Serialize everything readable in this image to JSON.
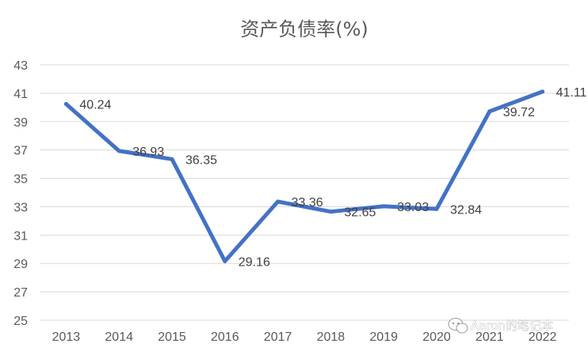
{
  "watermark": "Aaron的笔记本",
  "chart_data": {
    "type": "line",
    "title": "资产负债率(%)",
    "xlabel": "",
    "ylabel": "",
    "categories": [
      "2013",
      "2014",
      "2015",
      "2016",
      "2017",
      "2018",
      "2019",
      "2020",
      "2021",
      "2022"
    ],
    "values": [
      40.24,
      36.93,
      36.35,
      29.16,
      33.36,
      32.65,
      33.03,
      32.84,
      39.72,
      41.11
    ],
    "data_labels": [
      "40.24",
      "36.93",
      "36.35",
      "29.16",
      "33.36",
      "32.65",
      "33.03",
      "32.84",
      "39.72",
      "41.11"
    ],
    "ylim": [
      25,
      43
    ],
    "yticks": [
      25,
      27,
      29,
      31,
      33,
      35,
      37,
      39,
      41,
      43
    ],
    "grid": true,
    "legend": "none",
    "colors": {
      "line": "#4472c4",
      "grid": "#d9d9d9",
      "text": "#595959"
    }
  }
}
